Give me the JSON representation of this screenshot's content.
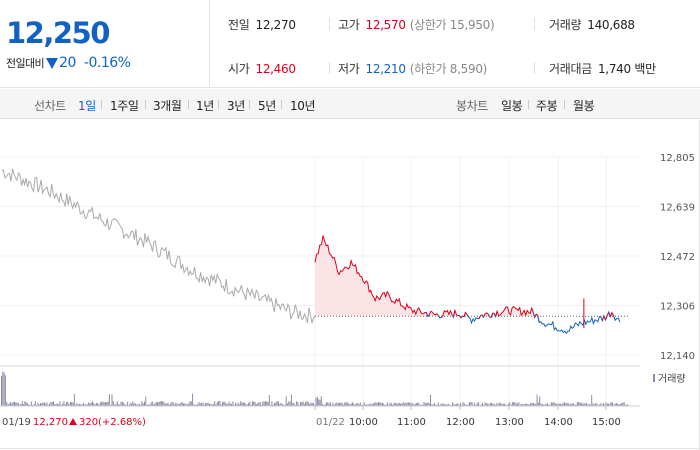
{
  "quote": {
    "price": "12,250",
    "change_label": "전일대비",
    "change_value": "20",
    "change_rate": "-0.16%",
    "prev_close_label": "전일",
    "prev_close": "12,270",
    "open_label": "시가",
    "open": "12,460",
    "high_label": "고가",
    "high": "12,570",
    "upper_limit": "(상한가 15,950)",
    "low_label": "저가",
    "low": "12,210",
    "lower_limit": "(하한가 8,590)",
    "volume_label": "거래량",
    "volume": "140,688",
    "amount_label": "거래대금",
    "amount": "1,740 백만"
  },
  "toolbar": {
    "line_chart_label": "선차트",
    "periods": [
      "1일",
      "1주일",
      "3개월",
      "1년",
      "3년",
      "5년",
      "10년"
    ],
    "active_period": "1일",
    "candle_label": "봉차트",
    "candle_periods": [
      "일봉",
      "주봉",
      "월봉"
    ]
  },
  "chart_data": {
    "type": "line",
    "title": "",
    "x_labels": [
      "01/22",
      "10:00",
      "11:00",
      "12:00",
      "13:00",
      "14:00",
      "15:00"
    ],
    "y_ticks": [
      "12,805",
      "12,639",
      "12,472",
      "12,306",
      "12,140"
    ],
    "ylim": [
      12140,
      12805
    ],
    "baseline": 12270,
    "prev_day_label": {
      "date": "01/19",
      "close": "12,270",
      "change": "320",
      "rate": "(+2.68%)"
    },
    "volume_label": "거래량",
    "series": [
      {
        "color": "#aaaaaa",
        "x": [
          "01/19 09:00",
          "01/19 10:00",
          "01/19 11:00",
          "01/19 12:00",
          "01/19 13:00",
          "01/19 14:00",
          "01/19 15:00",
          "01/19 15:30"
        ],
        "values": [
          12760,
          12690,
          12600,
          12520,
          12420,
          12350,
          12285,
          12270
        ]
      },
      {
        "color": "#e0001b",
        "color_below": "#1261c4",
        "x": [
          "09:00",
          "09:10",
          "09:20",
          "09:30",
          "09:45",
          "10:00",
          "10:15",
          "10:30",
          "11:00",
          "11:30",
          "12:00",
          "12:15",
          "12:30",
          "13:00",
          "13:30",
          "13:45",
          "14:00",
          "14:15",
          "14:30",
          "15:00",
          "15:10",
          "15:20"
        ],
        "values": [
          12460,
          12530,
          12480,
          12420,
          12450,
          12400,
          12330,
          12340,
          12290,
          12275,
          12280,
          12260,
          12275,
          12290,
          12285,
          12250,
          12235,
          12222,
          12245,
          12265,
          12285,
          12250
        ]
      }
    ],
    "area_fill": "#fbe4e6",
    "volume_color": "#8a8aaa"
  }
}
